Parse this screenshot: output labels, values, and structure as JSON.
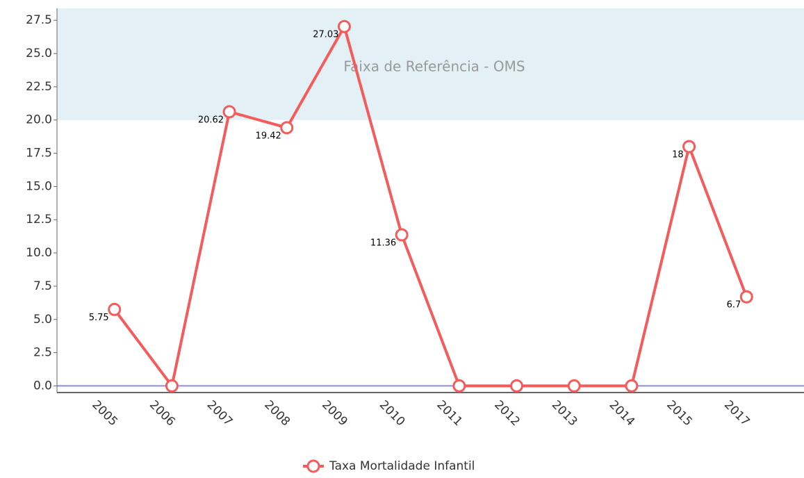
{
  "chart_data": {
    "type": "line",
    "categories": [
      "2005",
      "2006",
      "2007",
      "2008",
      "2009",
      "2010",
      "2011",
      "2012",
      "2013",
      "2014",
      "2015",
      "2017"
    ],
    "series": [
      {
        "name": "Taxa Mortalidade Infantil",
        "color": "#f45b5b",
        "values": [
          5.75,
          0,
          20.62,
          19.42,
          27.03,
          11.36,
          0,
          0,
          0,
          0,
          18,
          6.7
        ],
        "value_labels": [
          "5.75",
          null,
          "20.62",
          "19.42",
          "27.03",
          "11.36",
          null,
          null,
          null,
          null,
          "18",
          "6.7"
        ]
      }
    ],
    "ylim": [
      -0.5,
      28.4
    ],
    "yticks": [
      {
        "value": 0,
        "label": "0.0"
      },
      2.5,
      {
        "value": 5,
        "label": "5.0"
      },
      7.5,
      {
        "value": 10,
        "label": "10.0"
      },
      12.5,
      {
        "value": 15,
        "label": "15.0"
      },
      17.5,
      {
        "value": 20,
        "label": "20.0"
      },
      22.5,
      {
        "value": 25,
        "label": "25.0"
      },
      27.5
    ],
    "band": {
      "label": "Faixa de Referência - OMS",
      "from": 20,
      "color": "#e3f1f7"
    },
    "plot_line": {
      "value": 0,
      "color": "#8c8cd9"
    }
  }
}
